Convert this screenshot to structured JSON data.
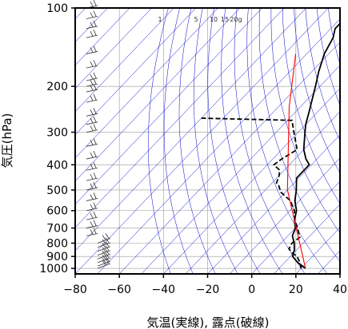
{
  "chart_data": {
    "type": "line",
    "subtype": "skew-T log-P diagram",
    "xlabel": "気温(実線), 露点(破線)",
    "ylabel": "気圧(hPa)",
    "x_ticks": [
      -80,
      -60,
      -40,
      -20,
      0,
      20,
      40
    ],
    "y_ticks": [
      100,
      200,
      300,
      400,
      500,
      600,
      700,
      800,
      900,
      1000
    ],
    "xlim": [
      -80,
      40
    ],
    "ylim": [
      1050,
      100
    ],
    "y_scale": "log",
    "mixing_ratio_labels": [
      "1",
      "5",
      "10",
      "15",
      "20g"
    ],
    "series": [
      {
        "line_style": "solid",
        "color": "#000000",
        "points": [
          [
            1000,
            22
          ],
          [
            950,
            16
          ],
          [
            900,
            11
          ],
          [
            850,
            9
          ],
          [
            800,
            6
          ],
          [
            750,
            2
          ],
          [
            700,
            0
          ],
          [
            650,
            -4
          ],
          [
            600,
            -7
          ],
          [
            550,
            -12
          ],
          [
            500,
            -16
          ],
          [
            450,
            -21
          ],
          [
            400,
            -21
          ],
          [
            380,
            -25
          ],
          [
            350,
            -30
          ],
          [
            300,
            -37
          ],
          [
            280,
            -40
          ],
          [
            250,
            -44
          ],
          [
            200,
            -52
          ],
          [
            175,
            -57
          ],
          [
            150,
            -62
          ],
          [
            130,
            -65
          ],
          [
            120,
            -68
          ],
          [
            110,
            -68
          ],
          [
            100,
            -68
          ]
        ]
      },
      {
        "line_style": "dashed",
        "color": "#000000",
        "points": [
          [
            1000,
            20
          ],
          [
            950,
            17
          ],
          [
            900,
            13
          ],
          [
            870,
            9
          ],
          [
            840,
            6
          ],
          [
            800,
            5
          ],
          [
            760,
            6
          ],
          [
            700,
            1
          ],
          [
            650,
            -4
          ],
          [
            600,
            -8
          ],
          [
            550,
            -14
          ],
          [
            510,
            -22
          ],
          [
            480,
            -26
          ],
          [
            470,
            -28
          ],
          [
            440,
            -30
          ],
          [
            420,
            -32
          ],
          [
            400,
            -37
          ],
          [
            380,
            -36
          ],
          [
            350,
            -33
          ],
          [
            300,
            -42
          ],
          [
            270,
            -48
          ],
          [
            265,
            -90
          ]
        ]
      },
      {
        "line_style": "solid",
        "color": "#ff0000",
        "points": [
          [
            1000,
            22
          ],
          [
            500,
            -20
          ],
          [
            240,
            -55
          ],
          [
            150,
            -75
          ]
        ]
      }
    ],
    "background": {
      "isotherm_color": "#0000cc",
      "isotherm_step": 10,
      "dry_adiabat_color": "#0000cc",
      "grid_color": "#999999"
    }
  }
}
